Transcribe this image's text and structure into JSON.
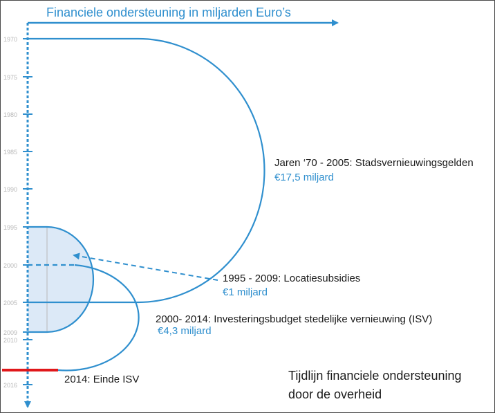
{
  "colors": {
    "accent": "#2f8fce",
    "fill": "#dce9f7",
    "end_marker": "#e0181b",
    "text": "#1a1a1a",
    "tick_text": "#b8b8b8"
  },
  "axis": {
    "title": "Financiele ondersteuning in miljarden Euro’s",
    "ticks": [
      "1970",
      "1975",
      "1980",
      "1985",
      "1990",
      "1995",
      "2000",
      "2005",
      "2009",
      "2010",
      "2016"
    ]
  },
  "periods": [
    {
      "label": "Jaren ‘70 - 2005: Stadsvernieuwingsgelden",
      "amount": "€17,5 miljard"
    },
    {
      "label": "1995 - 2009: Locatiesubsidies",
      "amount": "€1 miljard"
    },
    {
      "label": "2000- 2014: Investeringsbudget stedelijke vernieuwing (ISV)",
      "amount": "€4,3 miljard"
    }
  ],
  "end_label": "2014: Einde ISV",
  "caption": {
    "line1": "Tijdlijn financiele ondersteuning",
    "line2": "door de overheid"
  }
}
